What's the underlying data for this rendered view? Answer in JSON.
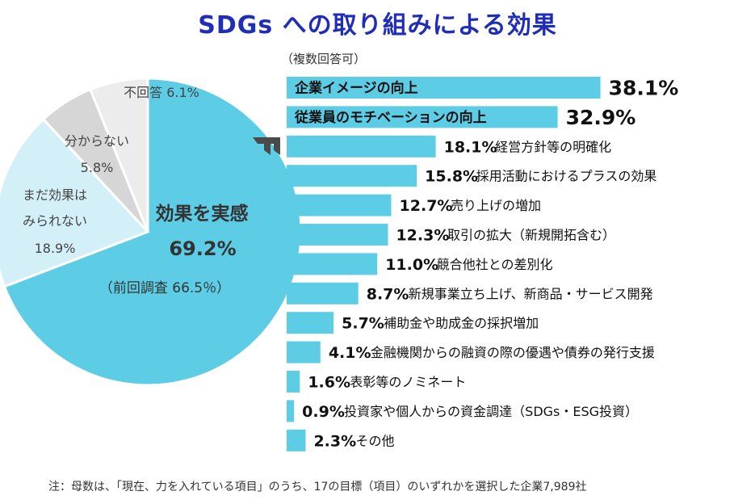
{
  "title": "SDGs への取り組みによる効果",
  "multiple_answers": "（複数回答可）",
  "footnote": "注：母数は、「現在、力を入れている項目」のうち、17の目標（項目）のいずれかを選択した企業7,989社",
  "colors": {
    "bar": "#5dcde6",
    "pie_main": "#5dcde6",
    "pie_light": "#d3f0f8",
    "pie_gray": "#d6d6d6",
    "pie_lightgray": "#ececec",
    "title": "#1f2db8",
    "arrow": "#4a4a4a"
  },
  "pie": {
    "main_label_line1": "効果を実感",
    "main_label_value": "69.2%",
    "main_label_prev": "（前回調査 66.5％）",
    "slices": [
      {
        "name": "効果を実感",
        "value": 69.2,
        "label_lines": []
      },
      {
        "name": "まだ効果はみられない",
        "value": 18.9,
        "label_lines": [
          "まだ効果は",
          "みられない",
          "18.9%"
        ]
      },
      {
        "name": "分からない",
        "value": 5.8,
        "label_lines": [
          "分からない",
          "5.8%"
        ]
      },
      {
        "name": "不回答",
        "value": 6.1,
        "label_lines": [
          "不回答 6.1%"
        ]
      }
    ]
  },
  "chart_data": [
    {
      "type": "pie",
      "categories": [
        "効果を実感",
        "まだ効果はみられない",
        "分からない",
        "不回答"
      ],
      "values": [
        69.2,
        18.9,
        5.8,
        6.1
      ]
    },
    {
      "type": "bar",
      "orientation": "horizontal",
      "categories": [
        "企業イメージの向上",
        "従業員のモチベーションの向上",
        "経営方針等の明確化",
        "採用活動におけるプラスの効果",
        "売り上げの増加",
        "取引の拡大（新規開拓含む）",
        "競合他社との差別化",
        "新規事業立ち上げ、新商品・サービス開発",
        "補助金や助成金の採択増加",
        "金融機関からの融資の際の優遇や債券の発行支援",
        "表彰等のノミネート",
        "投資家や個人からの資金調達（SDGs・ESG投資）",
        "その他"
      ],
      "values": [
        38.1,
        32.9,
        18.1,
        15.8,
        12.7,
        12.3,
        11.0,
        8.7,
        5.7,
        4.1,
        1.6,
        0.9,
        2.3
      ],
      "value_labels": [
        "38.1%",
        "32.9%",
        "18.1%",
        "15.8%",
        "12.7%",
        "12.3%",
        "11.0%",
        "8.7%",
        "5.7%",
        "4.1%",
        "1.6%",
        "0.9%",
        "2.3%"
      ],
      "highlighted": [
        true,
        true,
        false,
        false,
        false,
        false,
        false,
        false,
        false,
        false,
        false,
        false,
        false
      ]
    }
  ]
}
